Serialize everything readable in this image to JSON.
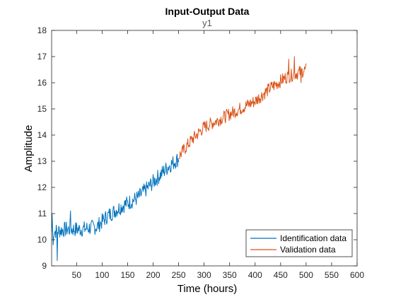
{
  "chart_data": {
    "type": "line",
    "title": "Input-Output Data",
    "subtitle": "y1",
    "xlabel": "Time (hours)",
    "ylabel": "Amplitude",
    "xlim": [
      1,
      600
    ],
    "ylim": [
      9,
      18
    ],
    "xticks": [
      50,
      100,
      150,
      200,
      250,
      300,
      350,
      400,
      450,
      500,
      550,
      600
    ],
    "yticks": [
      9,
      10,
      11,
      12,
      13,
      14,
      15,
      16,
      17,
      18
    ],
    "grid": false,
    "legend_position": "bottom-right",
    "series": [
      {
        "name": "Identification data",
        "color": "#0072BD",
        "x_range": [
          1,
          250
        ],
        "anchors": [
          [
            1,
            10.3
          ],
          [
            30,
            10.4
          ],
          [
            60,
            10.4
          ],
          [
            90,
            10.5
          ],
          [
            110,
            10.9
          ],
          [
            140,
            11.3
          ],
          [
            170,
            11.6
          ],
          [
            200,
            12.2
          ],
          [
            230,
            12.8
          ],
          [
            250,
            13.1
          ]
        ],
        "noise": 0.3,
        "extremes": [
          [
            2,
            11.0
          ],
          [
            4,
            9.8
          ],
          [
            12,
            9.2
          ],
          [
            38,
            11.1
          ]
        ]
      },
      {
        "name": "Validation data",
        "color": "#D95319",
        "x_range": [
          251,
          500
        ],
        "anchors": [
          [
            251,
            13.2
          ],
          [
            275,
            13.8
          ],
          [
            300,
            14.3
          ],
          [
            330,
            14.6
          ],
          [
            360,
            14.9
          ],
          [
            400,
            15.3
          ],
          [
            430,
            15.8
          ],
          [
            460,
            16.2
          ],
          [
            500,
            16.5
          ]
        ],
        "noise": 0.25,
        "extremes": [
          [
            477,
            17.0
          ],
          [
            466,
            16.9
          ],
          [
            490,
            16.0
          ]
        ]
      }
    ]
  }
}
